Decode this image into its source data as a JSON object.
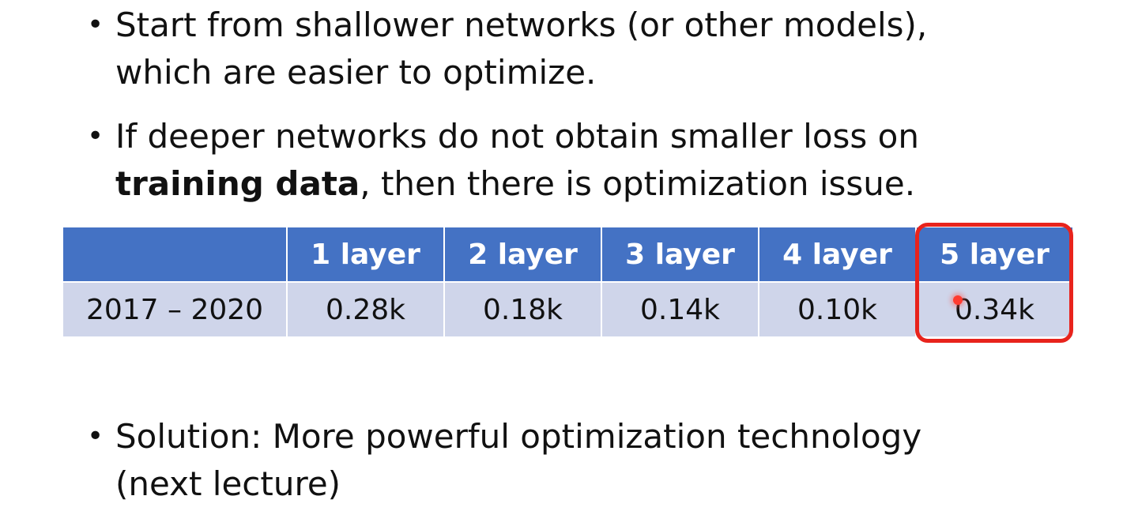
{
  "bullets": {
    "b1": {
      "line1": "Start from shallower networks (or other models),",
      "line2": "which are easier to optimize."
    },
    "b2": {
      "line1": "If deeper networks do not obtain smaller loss on",
      "line2_bold": "training data",
      "line2_rest": ",  then there is optimization issue."
    },
    "b3": {
      "line1": "Solution: More powerful optimization technology",
      "line2": "(next lecture)"
    },
    "symbol": "•"
  },
  "table": {
    "headers": [
      "",
      "1 layer",
      "2 layer",
      "3 layer",
      "4 layer",
      "5 layer"
    ],
    "row": [
      "2017 – 2020",
      "0.28k",
      "0.18k",
      "0.14k",
      "0.10k",
      "0.34k"
    ]
  },
  "colors": {
    "header_bg": "#4472c4",
    "row_bg": "#cfd5ea",
    "highlight": "#e8231c"
  }
}
